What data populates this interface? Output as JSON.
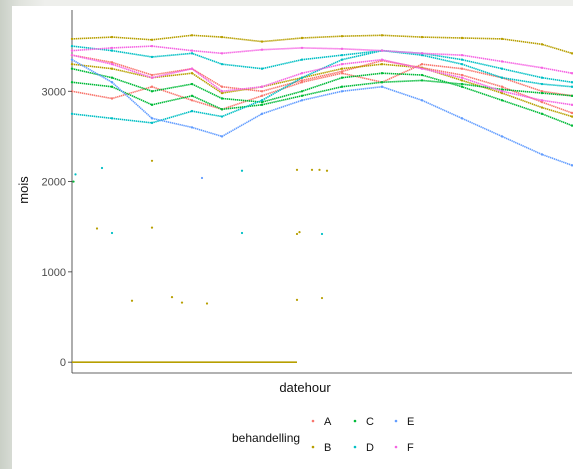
{
  "chart_data": {
    "type": "scatter",
    "xlabel": "datehour",
    "ylabel": "mois",
    "ylim": [
      -120,
      3900
    ],
    "xlim": [
      0,
      100
    ],
    "y_ticks": [
      0,
      1000,
      2000,
      3000
    ],
    "x_ticks": [],
    "grid": false,
    "legend_position": "bottom",
    "legend_title": "behandelling",
    "colors": {
      "A": "#F8766D",
      "B": "#B79F00",
      "C": "#00BA38",
      "D": "#00BFC4",
      "E": "#619CFF",
      "F": "#F564E3"
    },
    "legend_entries": [
      {
        "name": "A",
        "color": "#F8766D"
      },
      {
        "name": "B",
        "color": "#B79F00"
      },
      {
        "name": "C",
        "color": "#00BA38"
      },
      {
        "name": "D",
        "color": "#00BFC4"
      },
      {
        "name": "E",
        "color": "#619CFF"
      },
      {
        "name": "F",
        "color": "#F564E3"
      }
    ],
    "series": [
      {
        "name": "A",
        "color": "#F8766D",
        "x": [
          0,
          8,
          16,
          24,
          30,
          38,
          46,
          54,
          62,
          70,
          78,
          86,
          94,
          100
        ],
        "y": [
          3400,
          3320,
          3180,
          3250,
          3050,
          3000,
          3120,
          3220,
          3340,
          3260,
          3180,
          3050,
          2880,
          2760
        ]
      },
      {
        "name": "A",
        "color": "#F8766D",
        "x": [
          0,
          8,
          16,
          24,
          30,
          38,
          46,
          54,
          62,
          70,
          78,
          86,
          94,
          100
        ],
        "y": [
          3000,
          2920,
          3050,
          2900,
          2800,
          2950,
          3100,
          3200,
          3100,
          3300,
          3250,
          3150,
          3000,
          2950
        ]
      },
      {
        "name": "B",
        "color": "#B79F00",
        "x": [
          0,
          8,
          16,
          24,
          30,
          38,
          46,
          54,
          62,
          70,
          78,
          86,
          94,
          100
        ],
        "y": [
          3580,
          3600,
          3570,
          3620,
          3600,
          3550,
          3590,
          3610,
          3620,
          3600,
          3590,
          3580,
          3520,
          3420
        ]
      },
      {
        "name": "B",
        "color": "#B79F00",
        "x": [
          0,
          8,
          16,
          24,
          30,
          38,
          46,
          54,
          62,
          70,
          78,
          86,
          94,
          100
        ],
        "y": [
          3300,
          3250,
          3150,
          3200,
          2980,
          3050,
          3150,
          3250,
          3300,
          3260,
          3120,
          2980,
          2820,
          2720
        ]
      },
      {
        "name": "C",
        "color": "#00BA38",
        "x": [
          0,
          8,
          16,
          24,
          30,
          38,
          46,
          54,
          62,
          70,
          78,
          86,
          94,
          100
        ],
        "y": [
          3250,
          3150,
          3000,
          3080,
          2920,
          2880,
          3000,
          3150,
          3200,
          3180,
          3050,
          2900,
          2750,
          2620
        ]
      },
      {
        "name": "C",
        "color": "#00BA38",
        "x": [
          0,
          8,
          16,
          24,
          30,
          38,
          46,
          54,
          62,
          70,
          78,
          86,
          94,
          100
        ],
        "y": [
          3100,
          3050,
          2850,
          2950,
          2800,
          2850,
          2950,
          3050,
          3100,
          3120,
          3080,
          3020,
          2980,
          2950
        ]
      },
      {
        "name": "D",
        "color": "#00BFC4",
        "x": [
          0,
          8,
          16,
          24,
          30,
          38,
          46,
          54,
          62,
          70,
          78,
          86,
          94,
          100
        ],
        "y": [
          2750,
          2700,
          2650,
          2780,
          2720,
          2900,
          3150,
          3350,
          3450,
          3400,
          3300,
          3150,
          3080,
          3050
        ]
      },
      {
        "name": "D",
        "color": "#00BFC4",
        "x": [
          0,
          8,
          16,
          24,
          30,
          38,
          46,
          54,
          62,
          70,
          78,
          86,
          94,
          100
        ],
        "y": [
          3500,
          3450,
          3380,
          3420,
          3300,
          3250,
          3350,
          3400,
          3450,
          3420,
          3350,
          3250,
          3150,
          3100
        ]
      },
      {
        "name": "E",
        "color": "#619CFF",
        "x": [
          0,
          8,
          16,
          24,
          30,
          38,
          46,
          54,
          62,
          70,
          78,
          86,
          94,
          100
        ],
        "y": [
          3350,
          3100,
          2700,
          2600,
          2500,
          2750,
          2900,
          3000,
          3050,
          2900,
          2700,
          2500,
          2300,
          2180
        ]
      },
      {
        "name": "F",
        "color": "#F564E3",
        "x": [
          0,
          8,
          16,
          24,
          30,
          38,
          46,
          54,
          62,
          70,
          78,
          86,
          94,
          100
        ],
        "y": [
          3450,
          3480,
          3500,
          3450,
          3420,
          3460,
          3480,
          3470,
          3450,
          3420,
          3400,
          3330,
          3260,
          3200
        ]
      },
      {
        "name": "F",
        "color": "#F564E3",
        "x": [
          0,
          8,
          16,
          24,
          30,
          38,
          46,
          54,
          62,
          70,
          78,
          86,
          94,
          100
        ],
        "y": [
          3400,
          3300,
          3150,
          3250,
          3000,
          3050,
          3200,
          3300,
          3350,
          3250,
          3150,
          3000,
          2900,
          2850
        ]
      }
    ],
    "baseline": {
      "name": "B",
      "color": "#B79F00",
      "x": [
        0,
        45
      ],
      "y": [
        0,
        0
      ]
    },
    "outliers": [
      {
        "name": "C",
        "x": 0.3,
        "y": 2000
      },
      {
        "name": "D",
        "x": 0.7,
        "y": 2080
      },
      {
        "name": "D",
        "x": 6,
        "y": 2150
      },
      {
        "name": "B",
        "x": 16,
        "y": 2230
      },
      {
        "name": "E",
        "x": 26,
        "y": 2040
      },
      {
        "name": "D",
        "x": 34,
        "y": 2120
      },
      {
        "name": "B",
        "x": 45,
        "y": 2130
      },
      {
        "name": "B",
        "x": 48,
        "y": 2130
      },
      {
        "name": "B",
        "x": 49.5,
        "y": 2130
      },
      {
        "name": "B",
        "x": 51,
        "y": 2120
      },
      {
        "name": "B",
        "x": 5,
        "y": 1480
      },
      {
        "name": "D",
        "x": 8,
        "y": 1430
      },
      {
        "name": "B",
        "x": 16,
        "y": 1490
      },
      {
        "name": "D",
        "x": 34,
        "y": 1430
      },
      {
        "name": "B",
        "x": 45,
        "y": 1420
      },
      {
        "name": "B",
        "x": 45.5,
        "y": 1440
      },
      {
        "name": "D",
        "x": 50,
        "y": 1420
      },
      {
        "name": "B",
        "x": 12,
        "y": 680
      },
      {
        "name": "B",
        "x": 20,
        "y": 720
      },
      {
        "name": "B",
        "x": 22,
        "y": 660
      },
      {
        "name": "B",
        "x": 27,
        "y": 650
      },
      {
        "name": "B",
        "x": 45,
        "y": 690
      },
      {
        "name": "B",
        "x": 50,
        "y": 710
      }
    ]
  }
}
